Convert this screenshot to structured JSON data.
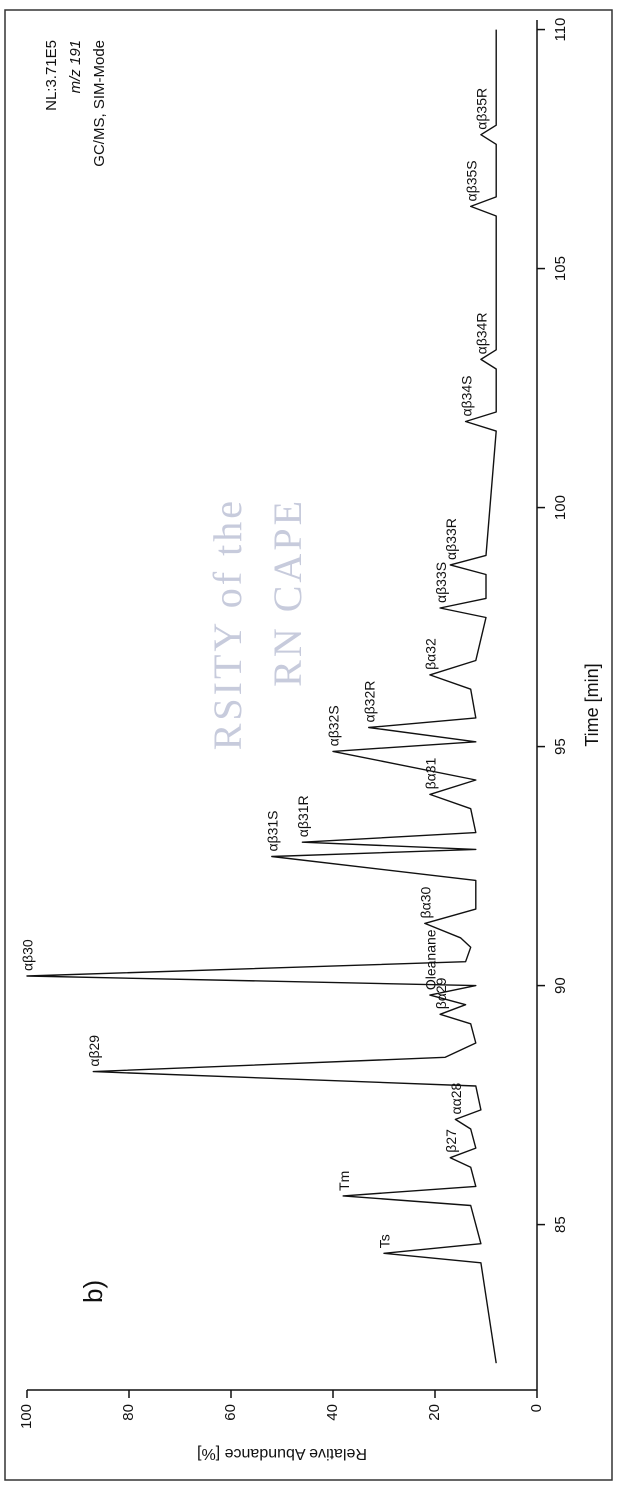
{
  "chart_data": {
    "type": "line",
    "panel_label": "b)",
    "info": [
      "NL:3.71E5",
      "m/z 191",
      "GC/MS, SIM-Mode"
    ],
    "watermark": [
      "RSITY of the",
      "RN CAPE"
    ],
    "xlabel": "Time [min]",
    "ylabel": "Relative Abundance [%]",
    "xlim": [
      82,
      110.2
    ],
    "xticks": [
      85,
      90,
      95,
      100,
      105,
      110
    ],
    "ylim": [
      0,
      100
    ],
    "yticks": [
      0,
      20,
      40,
      60,
      80,
      100
    ],
    "x": [
      82.1,
      82.8,
      83.5,
      84.2,
      84.4,
      84.6,
      85.0,
      85.4,
      85.6,
      85.8,
      86.2,
      86.4,
      86.6,
      87.0,
      87.2,
      87.4,
      87.9,
      88.2,
      88.5,
      88.8,
      89.2,
      89.4,
      89.6,
      89.8,
      90.0,
      90.2,
      90.5,
      90.8,
      91.0,
      91.3,
      91.6,
      92.2,
      92.7,
      92.85,
      93.0,
      93.2,
      93.7,
      94.0,
      94.3,
      94.9,
      95.1,
      95.4,
      95.6,
      96.2,
      96.5,
      96.8,
      97.7,
      97.9,
      98.1,
      98.6,
      98.8,
      99.0,
      101.6,
      101.8,
      102.0,
      102.9,
      103.1,
      103.3,
      106.1,
      106.3,
      106.5,
      107.6,
      107.8,
      108.0,
      110.0
    ],
    "series": [
      {
        "name": "m/z 191",
        "color": "#111111",
        "values": [
          8,
          9,
          10,
          11,
          30,
          11,
          12,
          13,
          38,
          12,
          13,
          17,
          12,
          13,
          16,
          11,
          12,
          87,
          18,
          12,
          13,
          19,
          14,
          21,
          12,
          100,
          14,
          13,
          15,
          22,
          12,
          12,
          52,
          12,
          46,
          12,
          13,
          21,
          12,
          40,
          12,
          33,
          12,
          13,
          21,
          12,
          10,
          19,
          10,
          10,
          17,
          10,
          8,
          14,
          8,
          8,
          11,
          8,
          8,
          13,
          8,
          8,
          11,
          8,
          8
        ]
      }
    ],
    "annotations": [
      {
        "text": "Ts",
        "x": 84.4,
        "y": 30
      },
      {
        "text": "Tm",
        "x": 85.6,
        "y": 38
      },
      {
        "text": "β27",
        "x": 86.4,
        "y": 17
      },
      {
        "text": "αα28",
        "x": 87.2,
        "y": 16
      },
      {
        "text": "αβ29",
        "x": 88.2,
        "y": 87
      },
      {
        "text": "βα29",
        "x": 89.4,
        "y": 19
      },
      {
        "text": "Oleanane",
        "x": 89.8,
        "y": 21
      },
      {
        "text": "αβ30",
        "x": 90.2,
        "y": 100
      },
      {
        "text": "βα30",
        "x": 91.3,
        "y": 22
      },
      {
        "text": "αβ31S",
        "x": 92.7,
        "y": 52
      },
      {
        "text": "αβ31R",
        "x": 93.0,
        "y": 46
      },
      {
        "text": "βα31",
        "x": 94.0,
        "y": 21
      },
      {
        "text": "αβ32S",
        "x": 94.9,
        "y": 40
      },
      {
        "text": "αβ32R",
        "x": 95.4,
        "y": 33
      },
      {
        "text": "βα32",
        "x": 96.5,
        "y": 21
      },
      {
        "text": "αβ33S",
        "x": 97.9,
        "y": 19
      },
      {
        "text": "αβ33R",
        "x": 98.8,
        "y": 17
      },
      {
        "text": "αβ34S",
        "x": 101.8,
        "y": 14
      },
      {
        "text": "αβ34R",
        "x": 103.1,
        "y": 11
      },
      {
        "text": "αβ35S",
        "x": 106.3,
        "y": 13
      },
      {
        "text": "αβ35R",
        "x": 107.8,
        "y": 11
      }
    ]
  }
}
